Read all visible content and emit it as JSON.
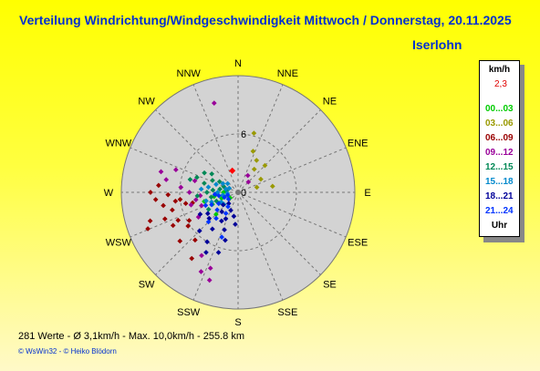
{
  "header": {
    "title": "Verteilung Windrichtung/Windgeschwindigkeit Mittwoch / Donnerstag, 20.11.2025",
    "location": "Iserlohn"
  },
  "chart_data": {
    "type": "scatter",
    "projection": "polar-compass",
    "directions": [
      "N",
      "NNE",
      "NE",
      "ENE",
      "E",
      "ESE",
      "SE",
      "SSE",
      "S",
      "SSW",
      "SW",
      "WSW",
      "W",
      "WNW",
      "NW",
      "NNW"
    ],
    "rings": [
      0,
      6,
      12
    ],
    "ring_labels": [
      "0",
      "6"
    ],
    "grid": true,
    "colors": {
      "plot_bg": "#d3d3d3",
      "grid": "#777777",
      "current": "#ff0000"
    },
    "series": [
      {
        "name": "00...03",
        "color": "#00cc00",
        "points": [
          {
            "dir": 225,
            "speed": 3.2
          },
          {
            "dir": 260,
            "speed": 2.5
          },
          {
            "dir": 250,
            "speed": 1.8
          },
          {
            "dir": 240,
            "speed": 2.2
          },
          {
            "dir": 270,
            "speed": 1.5
          },
          {
            "dir": 235,
            "speed": 1.0
          },
          {
            "dir": 255,
            "speed": 3.6
          },
          {
            "dir": 245,
            "speed": 2.9
          }
        ]
      },
      {
        "name": "03...06",
        "color": "#999900",
        "points": [
          {
            "dir": 20,
            "speed": 4.5
          },
          {
            "dir": 30,
            "speed": 3.8
          },
          {
            "dir": 60,
            "speed": 2.7
          },
          {
            "dir": 45,
            "speed": 3.9
          },
          {
            "dir": 75,
            "speed": 2.0
          },
          {
            "dir": 15,
            "speed": 6.3
          },
          {
            "dir": 35,
            "speed": 2.9
          },
          {
            "dir": 80,
            "speed": 3.6
          }
        ]
      },
      {
        "name": "06...09",
        "color": "#990000",
        "points": [
          {
            "dir": 265,
            "speed": 8.5
          },
          {
            "dir": 260,
            "speed": 7.8
          },
          {
            "dir": 255,
            "speed": 7.0
          },
          {
            "dir": 250,
            "speed": 8.0
          },
          {
            "dir": 262,
            "speed": 6.5
          },
          {
            "dir": 270,
            "speed": 9.0
          },
          {
            "dir": 245,
            "speed": 6.8
          },
          {
            "dir": 258,
            "speed": 5.5
          },
          {
            "dir": 252,
            "speed": 9.5
          },
          {
            "dir": 248,
            "speed": 10.0
          },
          {
            "dir": 268,
            "speed": 7.2
          },
          {
            "dir": 240,
            "speed": 5.8
          },
          {
            "dir": 275,
            "speed": 8.2
          },
          {
            "dir": 263,
            "speed": 6.0
          },
          {
            "dir": 257,
            "speed": 4.8
          },
          {
            "dir": 243,
            "speed": 7.5
          },
          {
            "dir": 236,
            "speed": 6.2
          },
          {
            "dir": 230,
            "speed": 7.8
          },
          {
            "dir": 222,
            "speed": 6.6
          },
          {
            "dir": 215,
            "speed": 8.3
          }
        ]
      },
      {
        "name": "09...12",
        "color": "#990099",
        "points": [
          {
            "dir": 345,
            "speed": 9.5
          },
          {
            "dir": 280,
            "speed": 7.5
          },
          {
            "dir": 285,
            "speed": 8.2
          },
          {
            "dir": 290,
            "speed": 6.8
          },
          {
            "dir": 275,
            "speed": 5.9
          },
          {
            "dir": 270,
            "speed": 5.0
          },
          {
            "dir": 205,
            "speed": 9.0
          },
          {
            "dir": 200,
            "speed": 8.3
          },
          {
            "dir": 198,
            "speed": 9.5
          },
          {
            "dir": 210,
            "speed": 7.5
          },
          {
            "dir": 255,
            "speed": 5.0
          },
          {
            "dir": 260,
            "speed": 4.4
          },
          {
            "dir": 265,
            "speed": 3.9
          },
          {
            "dir": 250,
            "speed": 4.0
          },
          {
            "dir": 238,
            "speed": 4.8
          },
          {
            "dir": 30,
            "speed": 2.0
          },
          {
            "dir": 45,
            "speed": 1.5
          },
          {
            "dir": 285,
            "speed": 4.6
          }
        ]
      },
      {
        "name": "12...15",
        "color": "#008855",
        "points": [
          {
            "dir": 285,
            "speed": 3.6
          },
          {
            "dir": 275,
            "speed": 2.6
          },
          {
            "dir": 265,
            "speed": 2.3
          },
          {
            "dir": 295,
            "speed": 2.9
          },
          {
            "dir": 280,
            "speed": 1.9
          },
          {
            "dir": 300,
            "speed": 2.2
          },
          {
            "dir": 255,
            "speed": 1.5
          },
          {
            "dir": 290,
            "speed": 4.5
          },
          {
            "dir": 270,
            "speed": 3.2
          },
          {
            "dir": 260,
            "speed": 2.8
          },
          {
            "dir": 305,
            "speed": 3.3
          },
          {
            "dir": 248,
            "speed": 2.4
          },
          {
            "dir": 278,
            "speed": 1.2
          },
          {
            "dir": 292,
            "speed": 1.6
          },
          {
            "dir": 285,
            "speed": 5.1
          },
          {
            "dir": 240,
            "speed": 3.5
          },
          {
            "dir": 300,
            "speed": 4.0
          },
          {
            "dir": 265,
            "speed": 4.2
          }
        ]
      },
      {
        "name": "15...18",
        "color": "#0088cc",
        "points": [
          {
            "dir": 290,
            "speed": 2.4
          },
          {
            "dir": 280,
            "speed": 3.1
          },
          {
            "dir": 270,
            "speed": 2.1
          },
          {
            "dir": 260,
            "speed": 1.6
          },
          {
            "dir": 300,
            "speed": 1.8
          },
          {
            "dir": 285,
            "speed": 1.3
          },
          {
            "dir": 250,
            "speed": 2.9
          },
          {
            "dir": 275,
            "speed": 3.8
          },
          {
            "dir": 265,
            "speed": 1.1
          },
          {
            "dir": 240,
            "speed": 2.0
          },
          {
            "dir": 295,
            "speed": 1.0
          },
          {
            "dir": 230,
            "speed": 1.9
          },
          {
            "dir": 255,
            "speed": 3.4
          },
          {
            "dir": 310,
            "speed": 1.4
          }
        ]
      },
      {
        "name": "18...21",
        "color": "#000099",
        "points": [
          {
            "dir": 200,
            "speed": 4.1
          },
          {
            "dir": 210,
            "speed": 3.4
          },
          {
            "dir": 220,
            "speed": 2.6
          },
          {
            "dir": 195,
            "speed": 5.1
          },
          {
            "dir": 215,
            "speed": 4.6
          },
          {
            "dir": 230,
            "speed": 2.0
          },
          {
            "dir": 205,
            "speed": 3.0
          },
          {
            "dir": 190,
            "speed": 2.5
          },
          {
            "dir": 225,
            "speed": 5.6
          },
          {
            "dir": 235,
            "speed": 3.8
          },
          {
            "dir": 198,
            "speed": 6.5
          },
          {
            "dir": 212,
            "speed": 6.0
          },
          {
            "dir": 185,
            "speed": 3.3
          },
          {
            "dir": 240,
            "speed": 4.5
          },
          {
            "dir": 220,
            "speed": 1.5
          },
          {
            "dir": 208,
            "speed": 7.0
          },
          {
            "dir": 202,
            "speed": 2.0
          },
          {
            "dir": 228,
            "speed": 4.0
          }
        ]
      },
      {
        "name": "21...24",
        "color": "#0033ff",
        "points": [
          {
            "dir": 250,
            "speed": 1.5
          },
          {
            "dir": 240,
            "speed": 2.3
          },
          {
            "dir": 230,
            "speed": 2.8
          },
          {
            "dir": 260,
            "speed": 2.0
          },
          {
            "dir": 220,
            "speed": 3.5
          },
          {
            "dir": 245,
            "speed": 3.0
          },
          {
            "dir": 235,
            "speed": 1.2
          },
          {
            "dir": 255,
            "speed": 1.1
          },
          {
            "dir": 210,
            "speed": 2.5
          },
          {
            "dir": 265,
            "speed": 2.4
          },
          {
            "dir": 225,
            "speed": 4.3
          },
          {
            "dir": 215,
            "speed": 1.8
          },
          {
            "dir": 200,
            "speed": 4.9
          },
          {
            "dir": 248,
            "speed": 3.6
          }
        ]
      }
    ],
    "current": {
      "value": "2,3",
      "dir": 345,
      "speed": 2.3
    }
  },
  "legend": {
    "unit": "km/h",
    "current_value": "2,3",
    "ranges": [
      {
        "label": "00...03",
        "color": "#00cc00"
      },
      {
        "label": "03...06",
        "color": "#999900"
      },
      {
        "label": "06...09",
        "color": "#990000"
      },
      {
        "label": "09...12",
        "color": "#990099"
      },
      {
        "label": "12...15",
        "color": "#008855"
      },
      {
        "label": "15...18",
        "color": "#0088cc"
      },
      {
        "label": "18...21",
        "color": "#000099"
      },
      {
        "label": "21...24",
        "color": "#0033ff"
      }
    ],
    "footer": "Uhr"
  },
  "footer": {
    "stats": "281 Werte   -   Ø 3,1km/h  -  Max. 10,0km/h   -   255.8 km",
    "credit": "© WsWin32   -  © Heiko Blödorn"
  }
}
